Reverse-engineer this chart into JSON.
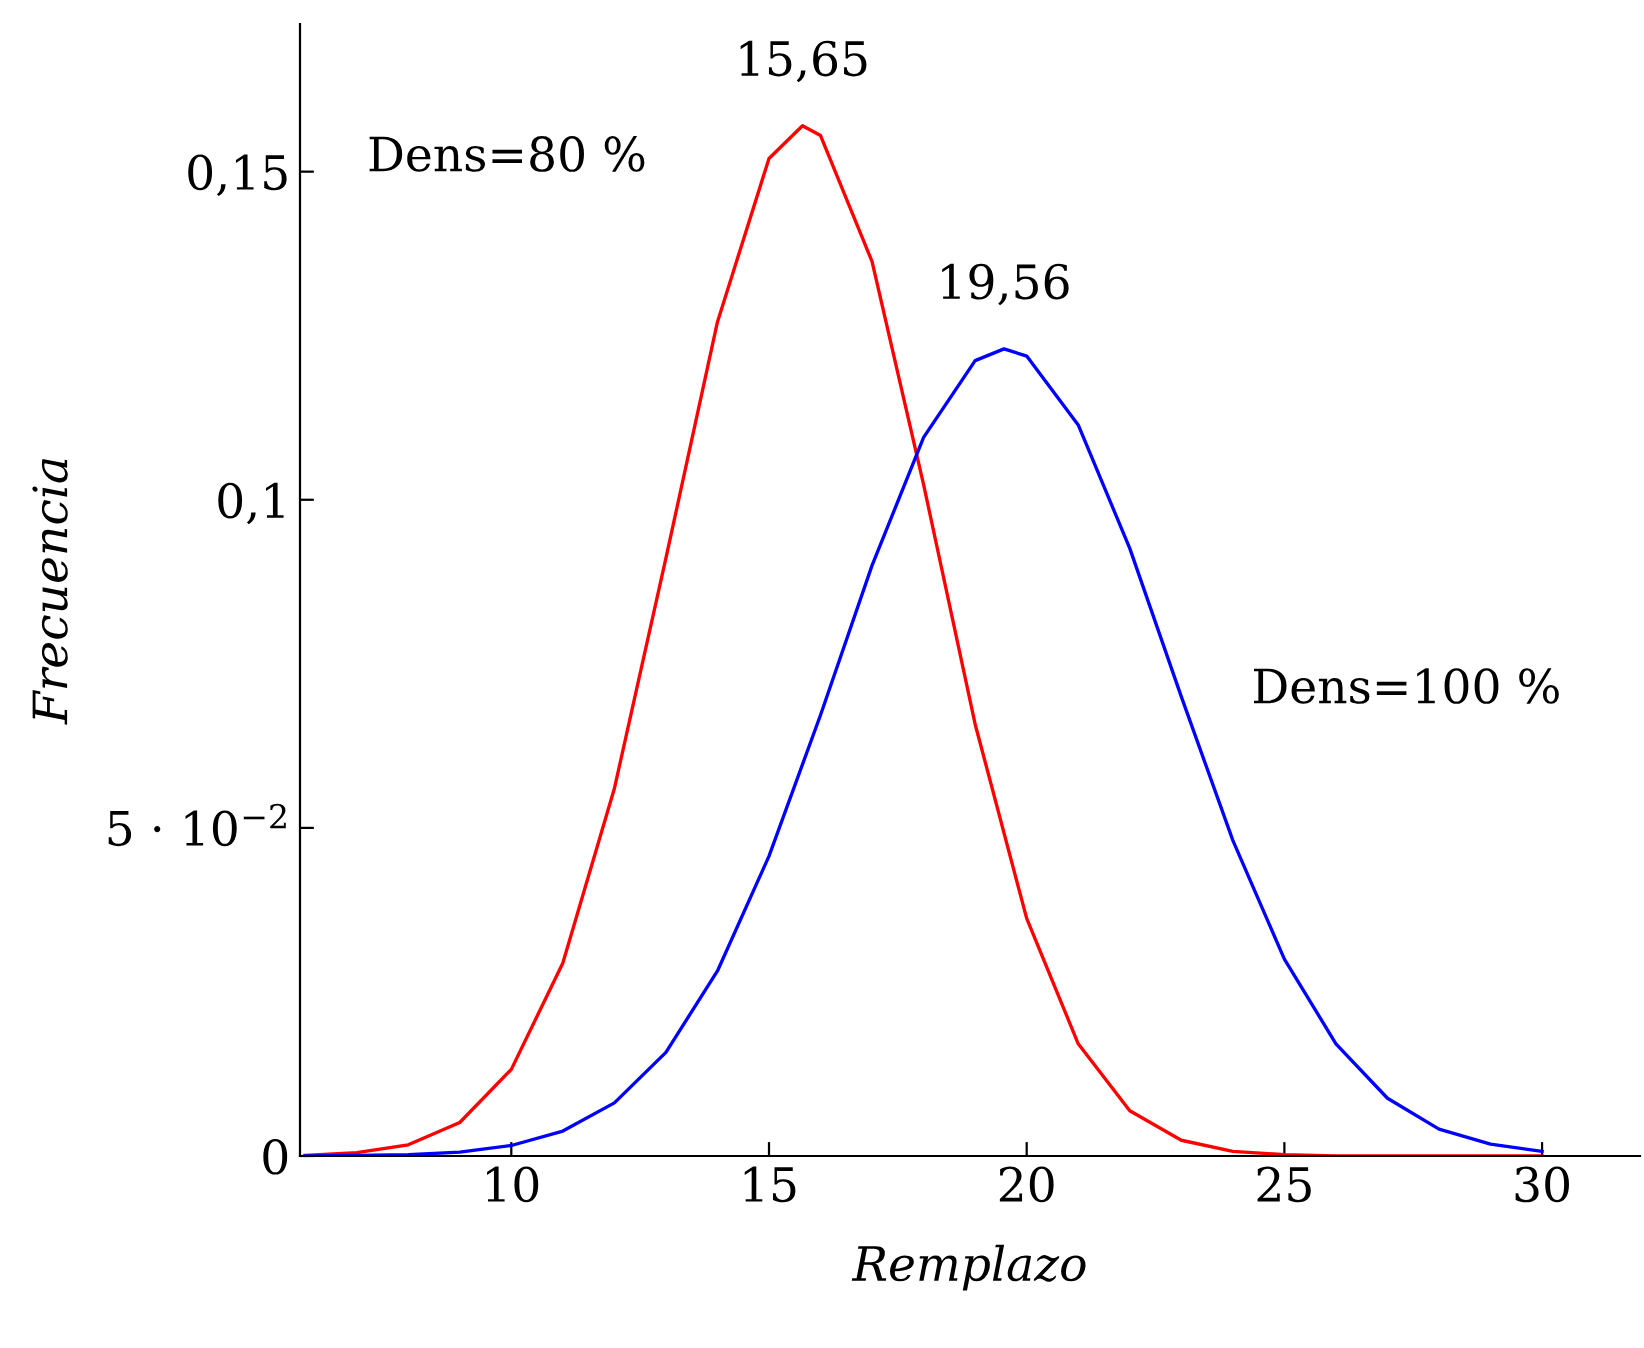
{
  "chart_data": {
    "type": "line",
    "xlabel": "Remplazo",
    "ylabel": "Frecuencia",
    "xlim": [
      5.9,
      31.9
    ],
    "ylim": [
      0,
      0.1725
    ],
    "xticks": [
      10,
      15,
      20,
      25,
      30
    ],
    "yticks": [
      0,
      {
        "value": 0.05,
        "label": "5 · 10$^{−2}$"
      },
      {
        "value": 0.1,
        "label": "0,1"
      },
      {
        "value": 0.15,
        "label": "0,15"
      }
    ],
    "grid": false,
    "legend": false,
    "marker": "none",
    "line_style": "solid",
    "series": [
      {
        "name": "Dens=80 %",
        "color": "#ff0000",
        "x": [
          6,
          7,
          8,
          9,
          10,
          11,
          12,
          13,
          14,
          15,
          15.65,
          16,
          17,
          18,
          19,
          20,
          21,
          22,
          23,
          24,
          25,
          26,
          27,
          28,
          29,
          30
        ],
        "values": [
          0.0001,
          0.0005,
          0.0017,
          0.0051,
          0.0132,
          0.0294,
          0.056,
          0.0911,
          0.1271,
          0.152,
          0.157,
          0.1555,
          0.1363,
          0.1023,
          0.0658,
          0.0362,
          0.0171,
          0.0069,
          0.0024,
          0.0007,
          0.0002,
          0,
          0,
          0,
          0,
          0
        ]
      },
      {
        "name": "Dens=100 %",
        "color": "#0000ff",
        "x": [
          6,
          7,
          8,
          9,
          10,
          11,
          12,
          13,
          14,
          15,
          16,
          17,
          18,
          19,
          19.56,
          20,
          21,
          22,
          23,
          24,
          25,
          26,
          27,
          28,
          29,
          30
        ],
        "values": [
          0,
          0.0001,
          0.0002,
          0.0006,
          0.0016,
          0.0038,
          0.0081,
          0.0158,
          0.0282,
          0.0457,
          0.0672,
          0.09,
          0.1095,
          0.1212,
          0.123,
          0.1219,
          0.1114,
          0.0926,
          0.07,
          0.0481,
          0.03,
          0.0171,
          0.0088,
          0.0041,
          0.0018,
          0.0007
        ]
      }
    ],
    "annotations": [
      {
        "text": "15,65",
        "x": 15.65,
        "y": 0.157
      },
      {
        "text": "19,56",
        "x": 19.56,
        "y": 0.123
      }
    ]
  }
}
